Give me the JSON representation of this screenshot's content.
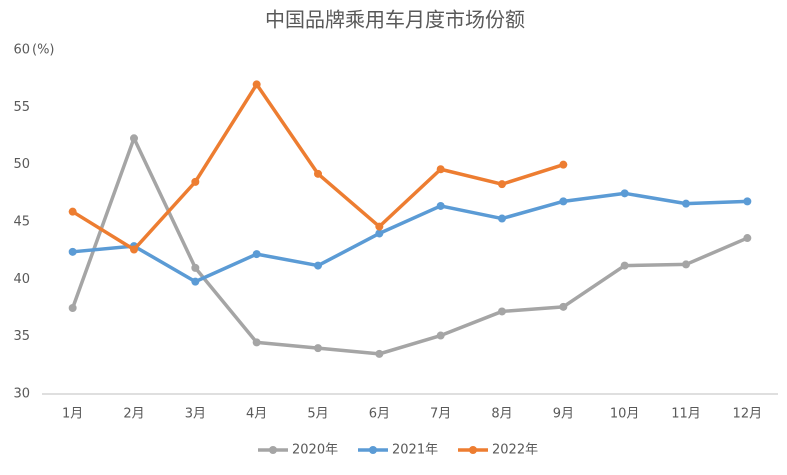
{
  "chart_data": {
    "type": "line",
    "title": "中国品牌乘用车月度市场份额",
    "y_label": "(%)",
    "categories": [
      "1月",
      "2月",
      "3月",
      "4月",
      "5月",
      "6月",
      "7月",
      "8月",
      "9月",
      "10月",
      "11月",
      "12月"
    ],
    "series": [
      {
        "name": "2020年",
        "color": "#a5a5a5",
        "values": [
          37.5,
          52.3,
          41.0,
          34.5,
          34.0,
          33.5,
          35.1,
          37.2,
          37.6,
          41.2,
          41.3,
          43.6
        ]
      },
      {
        "name": "2021年",
        "color": "#5b9bd5",
        "values": [
          42.4,
          42.9,
          39.8,
          42.2,
          41.2,
          44.0,
          46.4,
          45.3,
          46.8,
          47.5,
          46.6,
          46.8
        ]
      },
      {
        "name": "2022年",
        "color": "#ed7d31",
        "values": [
          45.9,
          42.6,
          48.5,
          57.0,
          49.2,
          44.6,
          49.6,
          48.3,
          50.0,
          null,
          null,
          null
        ]
      }
    ],
    "ylim": [
      30,
      60
    ],
    "yticks": [
      30,
      35,
      40,
      45,
      50,
      55,
      60
    ],
    "grid": false,
    "legend": "bottom"
  }
}
